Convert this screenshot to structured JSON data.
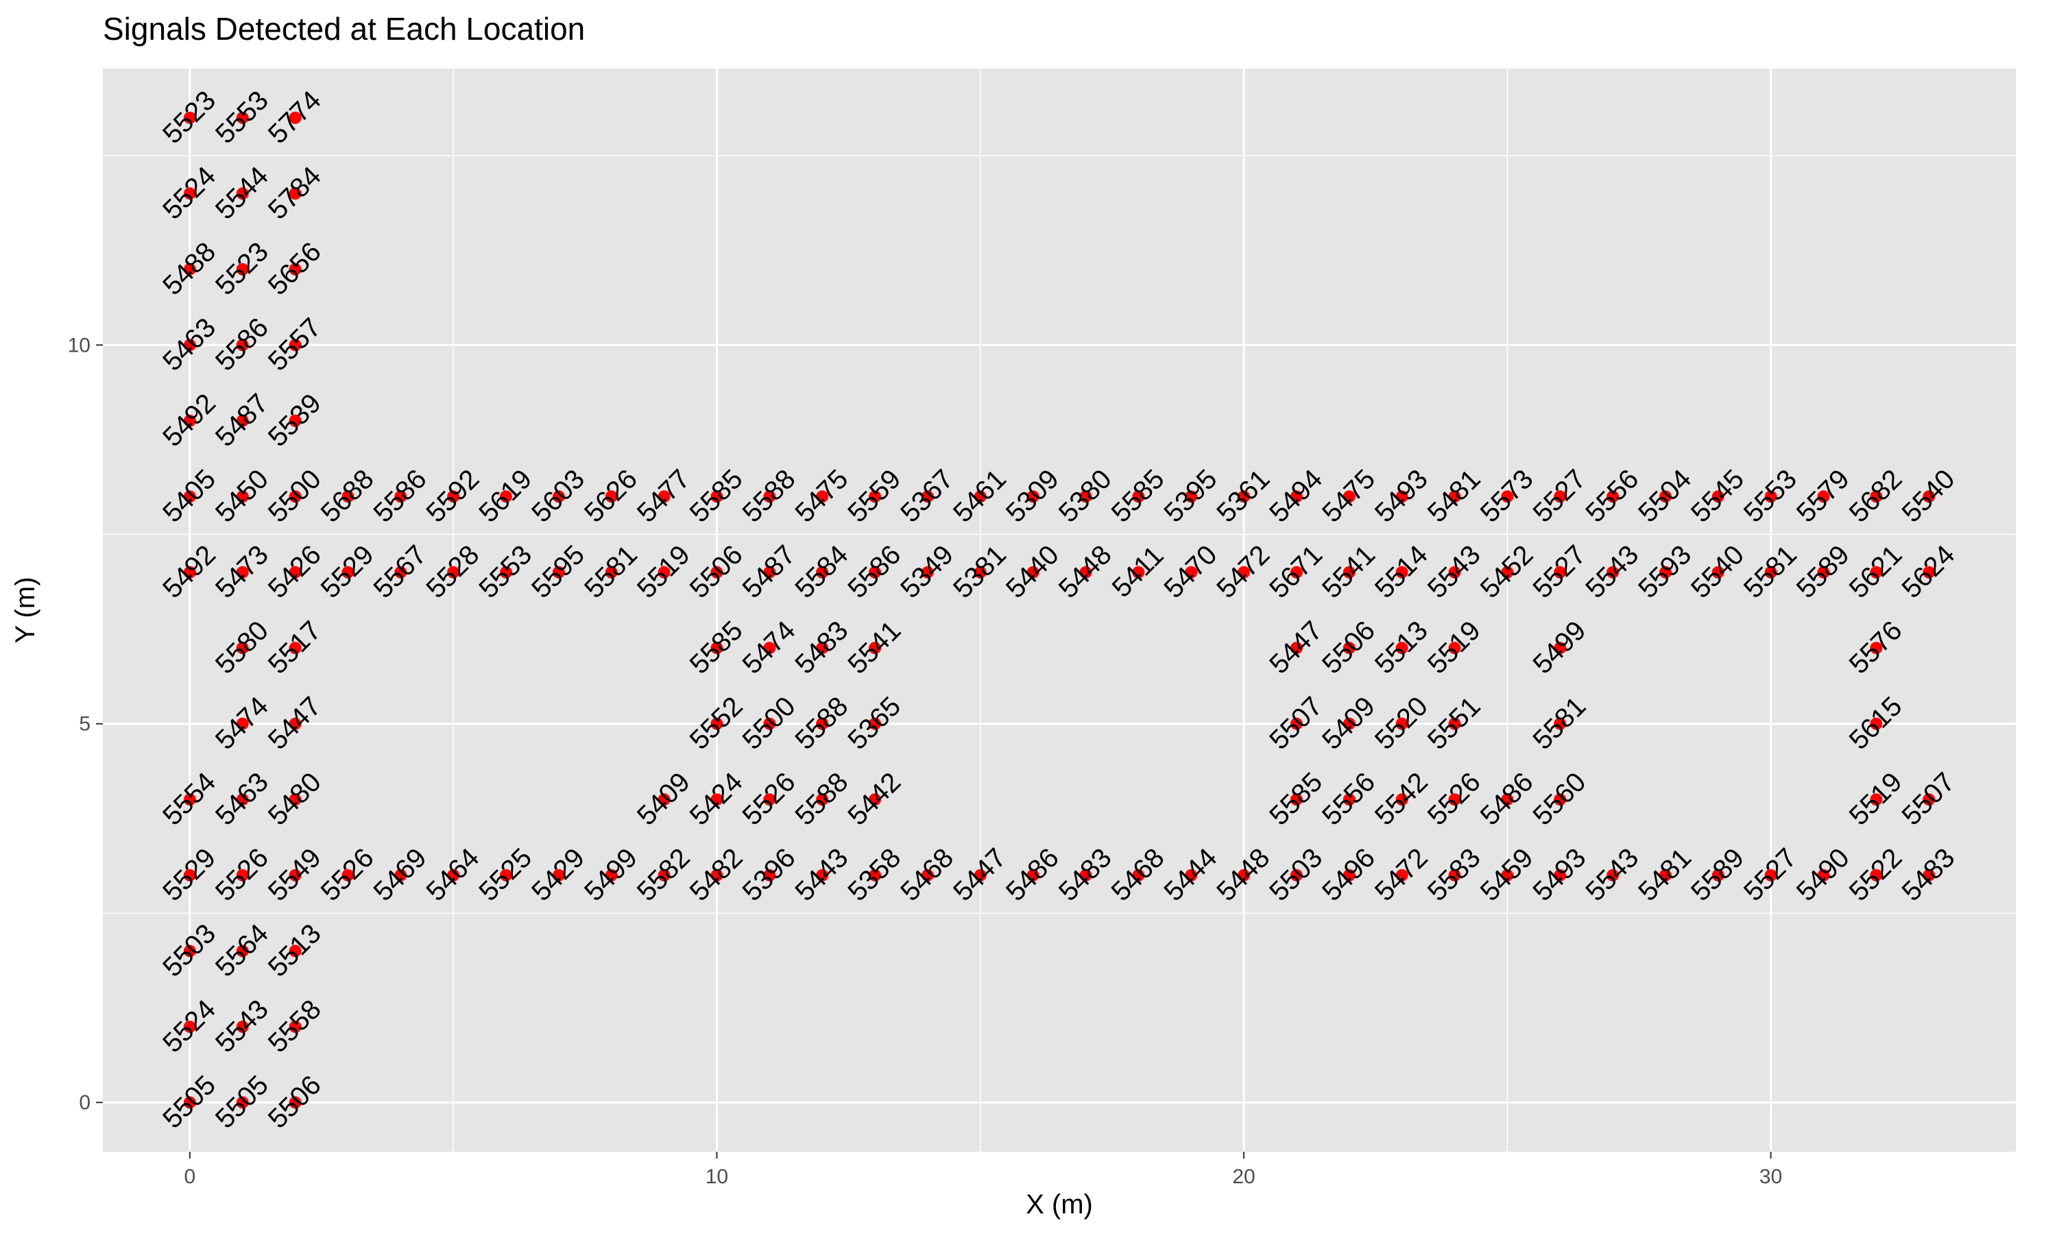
{
  "chart_data": {
    "type": "scatter",
    "title": "Signals Detected at Each Location",
    "xlabel": "X (m)",
    "ylabel": "Y (m)",
    "xlim": [
      -1.65,
      34.65
    ],
    "ylim": [
      -0.65,
      13.65
    ],
    "x_ticks": [
      0,
      10,
      20,
      30
    ],
    "y_ticks": [
      0,
      5,
      10
    ],
    "grid": true,
    "legend": "none",
    "colors": {
      "point": "#ff0000",
      "panel": "#e5e5e5",
      "grid": "#ffffff",
      "text": "#000000",
      "tick_text": "#4d4d4d"
    },
    "series": [
      {
        "points": [
          [
            0,
            13,
            "5523"
          ],
          [
            1,
            13,
            "5553"
          ],
          [
            2,
            13,
            "5774"
          ],
          [
            0,
            12,
            "5524"
          ],
          [
            1,
            12,
            "5544"
          ],
          [
            2,
            12,
            "5784"
          ],
          [
            0,
            11,
            "5488"
          ],
          [
            1,
            11,
            "5523"
          ],
          [
            2,
            11,
            "5656"
          ],
          [
            0,
            10,
            "5463"
          ],
          [
            1,
            10,
            "5586"
          ],
          [
            2,
            10,
            "5557"
          ],
          [
            0,
            9,
            "5492"
          ],
          [
            1,
            9,
            "5487"
          ],
          [
            2,
            9,
            "5539"
          ],
          [
            0,
            8,
            "5405"
          ],
          [
            1,
            8,
            "5450"
          ],
          [
            2,
            8,
            "5500"
          ],
          [
            3,
            8,
            "5688"
          ],
          [
            4,
            8,
            "5586"
          ],
          [
            5,
            8,
            "5592"
          ],
          [
            6,
            8,
            "5619"
          ],
          [
            7,
            8,
            "5603"
          ],
          [
            8,
            8,
            "5626"
          ],
          [
            9,
            8,
            "5477"
          ],
          [
            10,
            8,
            "5585"
          ],
          [
            11,
            8,
            "5588"
          ],
          [
            12,
            8,
            "5475"
          ],
          [
            13,
            8,
            "5559"
          ],
          [
            14,
            8,
            "5367"
          ],
          [
            15,
            8,
            "5461"
          ],
          [
            16,
            8,
            "5309"
          ],
          [
            17,
            8,
            "5380"
          ],
          [
            18,
            8,
            "5585"
          ],
          [
            19,
            8,
            "5395"
          ],
          [
            20,
            8,
            "5361"
          ],
          [
            21,
            8,
            "5494"
          ],
          [
            22,
            8,
            "5475"
          ],
          [
            23,
            8,
            "5493"
          ],
          [
            24,
            8,
            "5481"
          ],
          [
            25,
            8,
            "5573"
          ],
          [
            26,
            8,
            "5527"
          ],
          [
            27,
            8,
            "5556"
          ],
          [
            28,
            8,
            "5504"
          ],
          [
            29,
            8,
            "5545"
          ],
          [
            30,
            8,
            "5553"
          ],
          [
            31,
            8,
            "5579"
          ],
          [
            32,
            8,
            "5682"
          ],
          [
            33,
            8,
            "5540"
          ],
          [
            0,
            7,
            "5492"
          ],
          [
            1,
            7,
            "5473"
          ],
          [
            2,
            7,
            "5426"
          ],
          [
            3,
            7,
            "5529"
          ],
          [
            4,
            7,
            "5567"
          ],
          [
            5,
            7,
            "5528"
          ],
          [
            6,
            7,
            "5553"
          ],
          [
            7,
            7,
            "5595"
          ],
          [
            8,
            7,
            "5581"
          ],
          [
            9,
            7,
            "5519"
          ],
          [
            10,
            7,
            "5506"
          ],
          [
            11,
            7,
            "5487"
          ],
          [
            12,
            7,
            "5584"
          ],
          [
            13,
            7,
            "5586"
          ],
          [
            14,
            7,
            "5349"
          ],
          [
            15,
            7,
            "5381"
          ],
          [
            16,
            7,
            "5440"
          ],
          [
            17,
            7,
            "5448"
          ],
          [
            18,
            7,
            "5411"
          ],
          [
            19,
            7,
            "5470"
          ],
          [
            20,
            7,
            "5472"
          ],
          [
            21,
            7,
            "5671"
          ],
          [
            22,
            7,
            "5541"
          ],
          [
            23,
            7,
            "5514"
          ],
          [
            24,
            7,
            "5543"
          ],
          [
            25,
            7,
            "5452"
          ],
          [
            26,
            7,
            "5527"
          ],
          [
            27,
            7,
            "5543"
          ],
          [
            28,
            7,
            "5593"
          ],
          [
            29,
            7,
            "5540"
          ],
          [
            30,
            7,
            "5581"
          ],
          [
            31,
            7,
            "5589"
          ],
          [
            32,
            7,
            "5621"
          ],
          [
            33,
            7,
            "5624"
          ],
          [
            1,
            6,
            "5580"
          ],
          [
            2,
            6,
            "5517"
          ],
          [
            10,
            6,
            "5585"
          ],
          [
            11,
            6,
            "5474"
          ],
          [
            12,
            6,
            "5483"
          ],
          [
            13,
            6,
            "5541"
          ],
          [
            21,
            6,
            "5447"
          ],
          [
            22,
            6,
            "5506"
          ],
          [
            23,
            6,
            "5513"
          ],
          [
            24,
            6,
            "5519"
          ],
          [
            26,
            6,
            "5499"
          ],
          [
            32,
            6,
            "5576"
          ],
          [
            1,
            5,
            "5474"
          ],
          [
            2,
            5,
            "5447"
          ],
          [
            10,
            5,
            "5552"
          ],
          [
            11,
            5,
            "5500"
          ],
          [
            12,
            5,
            "5588"
          ],
          [
            13,
            5,
            "5365"
          ],
          [
            21,
            5,
            "5507"
          ],
          [
            22,
            5,
            "5409"
          ],
          [
            23,
            5,
            "5520"
          ],
          [
            24,
            5,
            "5551"
          ],
          [
            26,
            5,
            "5581"
          ],
          [
            32,
            5,
            "5615"
          ],
          [
            0,
            4,
            "5554"
          ],
          [
            1,
            4,
            "5463"
          ],
          [
            2,
            4,
            "5480"
          ],
          [
            9,
            4,
            "5409"
          ],
          [
            10,
            4,
            "5424"
          ],
          [
            11,
            4,
            "5526"
          ],
          [
            12,
            4,
            "5588"
          ],
          [
            13,
            4,
            "5442"
          ],
          [
            21,
            4,
            "5585"
          ],
          [
            22,
            4,
            "5556"
          ],
          [
            23,
            4,
            "5542"
          ],
          [
            24,
            4,
            "5526"
          ],
          [
            25,
            4,
            "5486"
          ],
          [
            26,
            4,
            "5560"
          ],
          [
            32,
            4,
            "5519"
          ],
          [
            33,
            4,
            "5507"
          ],
          [
            0,
            3,
            "5529"
          ],
          [
            1,
            3,
            "5526"
          ],
          [
            2,
            3,
            "5549"
          ],
          [
            3,
            3,
            "5526"
          ],
          [
            4,
            3,
            "5469"
          ],
          [
            5,
            3,
            "5464"
          ],
          [
            6,
            3,
            "5525"
          ],
          [
            7,
            3,
            "5429"
          ],
          [
            8,
            3,
            "5499"
          ],
          [
            9,
            3,
            "5582"
          ],
          [
            10,
            3,
            "5482"
          ],
          [
            11,
            3,
            "5396"
          ],
          [
            12,
            3,
            "5443"
          ],
          [
            13,
            3,
            "5358"
          ],
          [
            14,
            3,
            "5468"
          ],
          [
            15,
            3,
            "5447"
          ],
          [
            16,
            3,
            "5486"
          ],
          [
            17,
            3,
            "5483"
          ],
          [
            18,
            3,
            "5468"
          ],
          [
            19,
            3,
            "5444"
          ],
          [
            20,
            3,
            "5448"
          ],
          [
            21,
            3,
            "5503"
          ],
          [
            22,
            3,
            "5496"
          ],
          [
            23,
            3,
            "5472"
          ],
          [
            24,
            3,
            "5583"
          ],
          [
            25,
            3,
            "5459"
          ],
          [
            26,
            3,
            "5493"
          ],
          [
            27,
            3,
            "5543"
          ],
          [
            28,
            3,
            "5481"
          ],
          [
            29,
            3,
            "5589"
          ],
          [
            30,
            3,
            "5527"
          ],
          [
            31,
            3,
            "5490"
          ],
          [
            32,
            3,
            "5522"
          ],
          [
            33,
            3,
            "5483"
          ],
          [
            0,
            2,
            "5503"
          ],
          [
            1,
            2,
            "5564"
          ],
          [
            2,
            2,
            "5513"
          ],
          [
            0,
            1,
            "5524"
          ],
          [
            1,
            1,
            "5543"
          ],
          [
            2,
            1,
            "5558"
          ],
          [
            0,
            0,
            "5505"
          ],
          [
            1,
            0,
            "5505"
          ],
          [
            2,
            0,
            "5506"
          ]
        ]
      }
    ]
  }
}
